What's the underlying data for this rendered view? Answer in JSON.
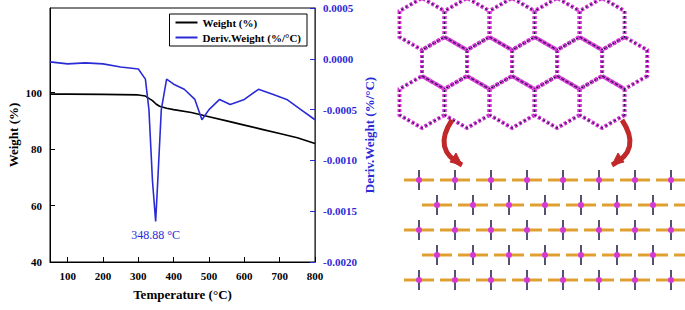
{
  "chart_data": {
    "type": "line",
    "x_label": "Temperature (°C)",
    "y_label": "Weight (%)",
    "y2_label": "Deriv.Weight (%/°C)",
    "xlim": [
      50,
      800
    ],
    "xticks": [
      100,
      200,
      300,
      400,
      500,
      600,
      700,
      800
    ],
    "ylim": [
      40,
      130
    ],
    "yticks": [
      40,
      60,
      80,
      100
    ],
    "y2lim": [
      -0.002,
      0.0005
    ],
    "y2ticks": [
      0.0005,
      {
        "value": 0,
        "label": "0.0000"
      },
      -0.0005,
      {
        "value": -0.001,
        "label": "-0.0010"
      },
      -0.0015,
      {
        "value": -0.002,
        "label": "-0.0020"
      }
    ],
    "grid": false,
    "legend": "upper right",
    "annotations": [
      {
        "text": "348.88 °C",
        "x": 349,
        "y": -0.0016,
        "color": "#2b2bd6"
      }
    ],
    "series": [
      {
        "name": "Weight (%)",
        "color": "#000000",
        "x": [
          50,
          100,
          200,
          300,
          320,
          340,
          350,
          360,
          380,
          400,
          450,
          500,
          550,
          600,
          650,
          700,
          750,
          800
        ],
        "values": [
          99.5,
          99.5,
          99.4,
          99.2,
          98.8,
          97.2,
          96,
          95.2,
          94.5,
          94,
          93,
          91.5,
          90,
          88.5,
          87,
          85.5,
          84,
          82
        ]
      },
      {
        "name": "Deriv.Weight (%/°C)",
        "color": "#2b2bd6",
        "axis": "y2",
        "x": [
          50,
          100,
          150,
          200,
          250,
          300,
          320,
          330,
          340,
          349,
          355,
          365,
          380,
          400,
          430,
          460,
          480,
          500,
          530,
          560,
          600,
          640,
          680,
          720,
          760,
          800
        ],
        "values": [
          -3e-05,
          -5e-05,
          -4e-05,
          -5e-05,
          -8e-05,
          -0.0001,
          -0.0002,
          -0.0005,
          -0.0012,
          -0.0016,
          -0.0012,
          -0.0005,
          -0.0002,
          -0.00025,
          -0.0003,
          -0.0004,
          -0.0006,
          -0.0005,
          -0.0004,
          -0.00045,
          -0.0004,
          -0.0003,
          -0.00035,
          -0.0004,
          -0.0005,
          -0.0006
        ]
      }
    ]
  }
}
